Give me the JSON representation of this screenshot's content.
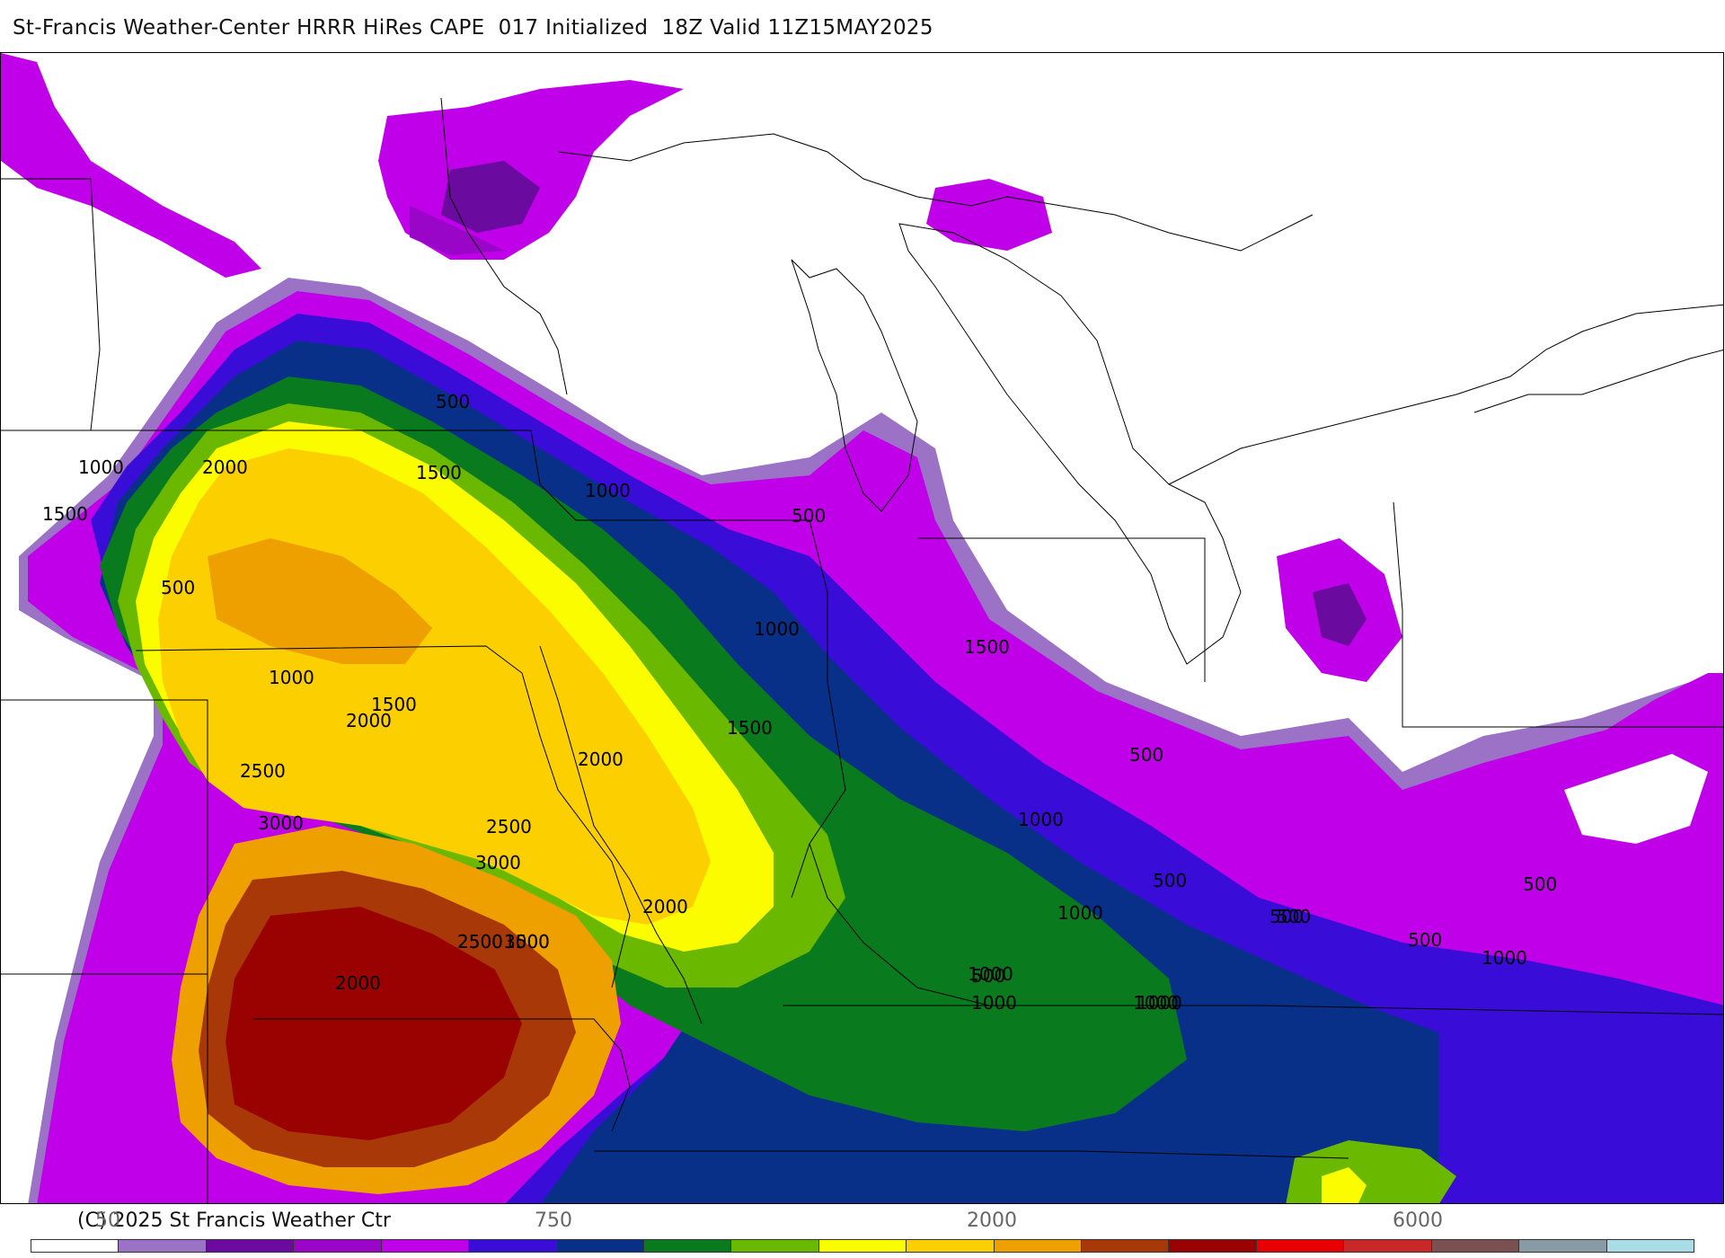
{
  "header": {
    "title": "St-Francis Weather-Center HRRR HiRes CAPE  017 Initialized  18Z Valid 11Z15MAY2025"
  },
  "colors": {
    "lavender": "#9b72c6",
    "dark_purple": "#6a0a9e",
    "purple": "#9a06c8",
    "magenta": "#c000e8",
    "blue_violet": "#3a0cd8",
    "navy": "#083088",
    "dark_green": "#0a7a1e",
    "green": "#6ab800",
    "yellow": "#fcfc00",
    "gold": "#fcd000",
    "orange": "#eda000",
    "brown_orange": "#c86000",
    "rust": "#a83808",
    "dark_red": "#9a0202",
    "red": "#e80000",
    "crimson": "#c82828",
    "brown": "#7a5050",
    "slate": "#889aa4",
    "light_cyan": "#a8dce6"
  },
  "map": {
    "contour_labels": [
      "500",
      "1000",
      "1500",
      "2000",
      "2500",
      "3000",
      "2500",
      "3000",
      "2000",
      "1500",
      "1000",
      "500",
      "1000",
      "1500",
      "2000",
      "500",
      "1000",
      "1500",
      "2000",
      "2500",
      "3000",
      "2000",
      "1500",
      "1000",
      "500",
      "1000",
      "500",
      "1000",
      "500",
      "1000",
      "500",
      "500",
      "1000",
      "1000",
      "500",
      "1000",
      "500",
      "2500",
      "1500"
    ]
  },
  "footer": {
    "copyright": "(C) 2025 St Francis Weather Ctr",
    "tick_labels": [
      "50",
      "750",
      "2000",
      "6000"
    ],
    "colorbar_colors": [
      "#ffffff",
      "#9b72c6",
      "#6a0a9e",
      "#9a06c8",
      "#c000e8",
      "#3a0cd8",
      "#083088",
      "#0a7a1e",
      "#6ab800",
      "#fcfc00",
      "#fcd000",
      "#eda000",
      "#a83808",
      "#9a0202",
      "#e80000",
      "#c82828",
      "#7a5050",
      "#889aa4",
      "#a8dce6"
    ]
  }
}
